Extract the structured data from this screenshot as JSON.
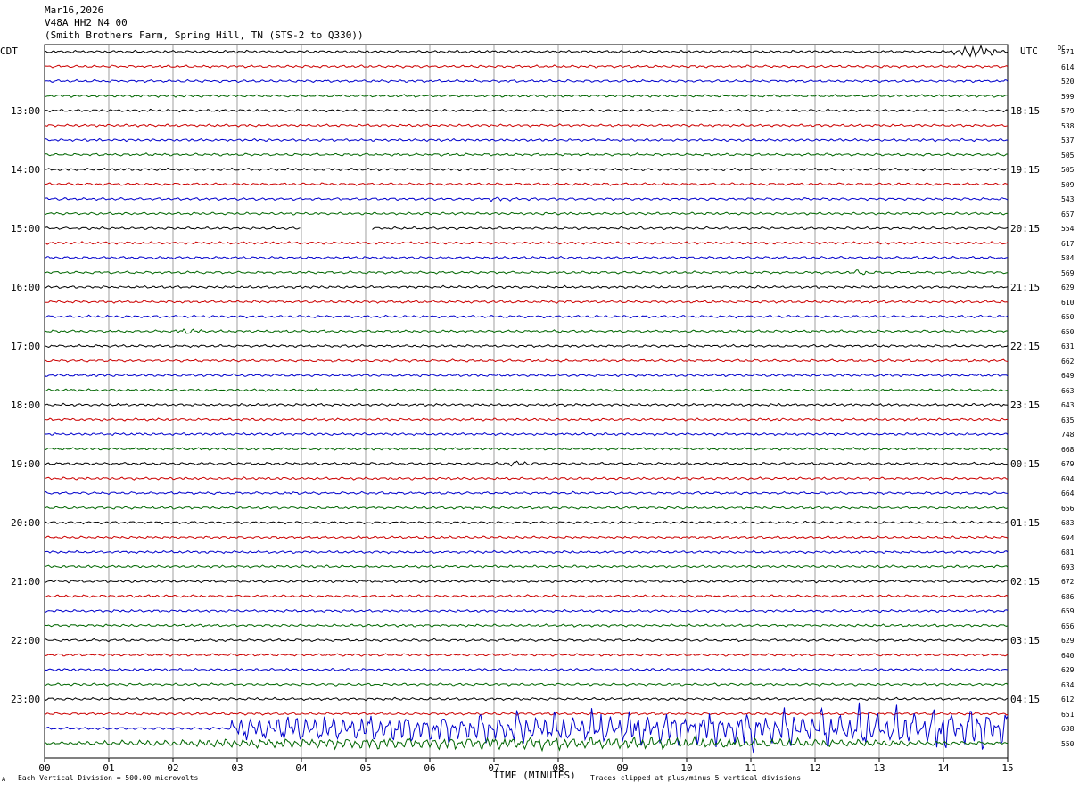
{
  "header": {
    "date": "Mar16,2026",
    "station": "V48A HH2 N4 00",
    "location": "(Smith Brothers Farm, Spring Hill, TN (STS-2 to Q330))"
  },
  "left_timezone": "CDT",
  "right_timezone": "UTC",
  "dc_label": "DC",
  "footer": {
    "scale": "Each Vertical Division =  500.00 microvolts",
    "clip": "Traces clipped at plus/minus 5 vertical divisions",
    "corner_mark": "A"
  },
  "chart_data": {
    "type": "line",
    "title": "",
    "xlabel": "TIME (MINUTES)",
    "x_ticks": [
      "00",
      "01",
      "02",
      "03",
      "04",
      "05",
      "06",
      "07",
      "08",
      "09",
      "10",
      "11",
      "12",
      "13",
      "14",
      "15"
    ],
    "xlim": [
      0,
      15
    ],
    "traces_per_hour": 4,
    "trace_colors": [
      "#000000",
      "#cc0000",
      "#0000cc",
      "#006600"
    ],
    "cdt_hour_labels": [
      "13:00",
      "14:00",
      "15:00",
      "16:00",
      "17:00",
      "18:00",
      "19:00",
      "20:00",
      "21:00",
      "22:00",
      "23:00"
    ],
    "utc_hour_labels": [
      "18:15",
      "19:15",
      "20:15",
      "21:15",
      "22:15",
      "23:15",
      "00:15",
      "01:15",
      "02:15",
      "03:15",
      "04:15"
    ],
    "dc_offsets": [
      571,
      614,
      520,
      599,
      579,
      538,
      537,
      505,
      505,
      509,
      543,
      657,
      554,
      617,
      584,
      569,
      629,
      610,
      650,
      650,
      631,
      662,
      649,
      663,
      643,
      635,
      748,
      668,
      679,
      694,
      664,
      656,
      683,
      694,
      681,
      693,
      672,
      686,
      659,
      656,
      629,
      640,
      629,
      634,
      612,
      651,
      638,
      550
    ],
    "events": [
      {
        "trace": 0,
        "start_min": 14.1,
        "end_min": 14.9,
        "amplitude": 2.5
      },
      {
        "trace": 10,
        "start_min": 6.8,
        "end_min": 7.4,
        "amplitude": 0.6
      },
      {
        "trace": 15,
        "start_min": 12.5,
        "end_min": 12.9,
        "amplitude": 0.9
      },
      {
        "trace": 19,
        "start_min": 2.0,
        "end_min": 2.5,
        "amplitude": 0.8
      },
      {
        "trace": 28,
        "start_min": 7.1,
        "end_min": 7.7,
        "amplitude": 0.9
      },
      {
        "trace": 46,
        "start_min": 2.9,
        "end_min": 15.0,
        "amplitude": 10
      },
      {
        "trace": 47,
        "start_min": 0.0,
        "end_min": 15.0,
        "amplitude": 2.5
      }
    ],
    "gaps": [
      {
        "trace": 12,
        "start_min": 4.0,
        "end_min": 5.1
      }
    ]
  }
}
